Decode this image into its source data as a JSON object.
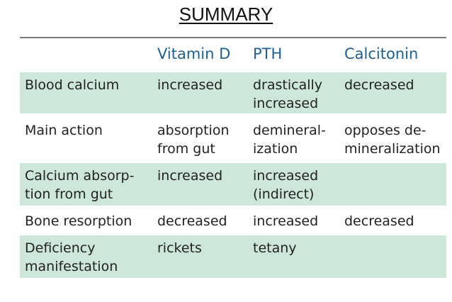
{
  "title": "SUMMARY",
  "headers": [
    "Vitamin D",
    "PTH",
    "Calcitonin"
  ],
  "rows": [
    {
      "label": "Blood calcium",
      "vitamin_d": "increased",
      "pth": "drastically\nincreased",
      "calcitonin": "decreased"
    },
    {
      "label": "Main action",
      "vitamin_d": "absorption\nfrom gut",
      "pth": "demineral-\nization",
      "calcitonin": "opposes de-\nmineralization"
    },
    {
      "label": "Calcium absorp-\ntion from gut",
      "vitamin_d": "increased",
      "pth": "increased\n(indirect)",
      "calcitonin": ""
    },
    {
      "label": "Bone resorption",
      "vitamin_d": "decreased",
      "pth": "increased",
      "calcitonin": "decreased"
    },
    {
      "label": "Deficiency\nmanifestation",
      "vitamin_d": "rickets",
      "pth": "tetany",
      "calcitonin": ""
    }
  ],
  "colors": {
    "header_text": "#1f5f8f",
    "row_shade": "#cde8d8",
    "rule": "#7a7a7a"
  }
}
